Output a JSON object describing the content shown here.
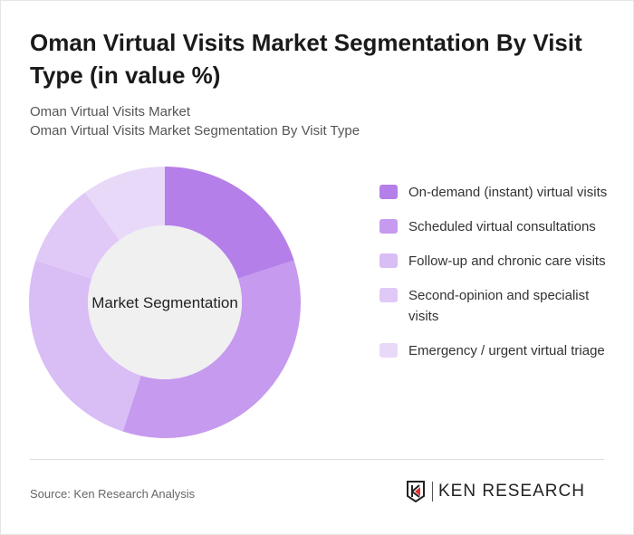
{
  "title": "Oman Virtual Visits Market Segmentation By Visit Type (in value %)",
  "subtitle1": "Oman Virtual Visits Market",
  "subtitle2": "Oman Virtual Visits Market Segmentation By Visit Type",
  "source": "Source: Ken Research Analysis",
  "logo_text": "KEN RESEARCH",
  "chart_data": {
    "type": "pie",
    "variant": "donut",
    "center_label": "Market Segmentation",
    "categories": [
      "On-demand (instant) virtual visits",
      "Scheduled virtual consultations",
      "Follow-up and chronic care visits",
      "Second-opinion and specialist visits",
      "Emergency / urgent virtual triage"
    ],
    "values": [
      20,
      35,
      25,
      10,
      10
    ],
    "colors": [
      "#b57fe9",
      "#c69aee",
      "#d9bdf5",
      "#e0c9f7",
      "#e8d9f9"
    ],
    "legend": "right"
  }
}
